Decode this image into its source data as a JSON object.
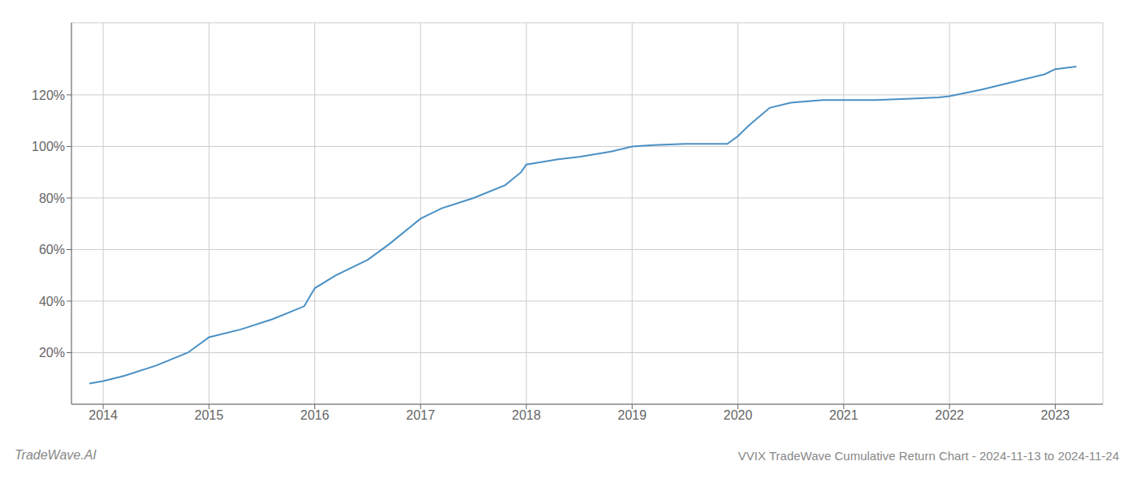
{
  "chart_data": {
    "type": "line",
    "title": "VVIX TradeWave Cumulative Return Chart - 2024-11-13 to 2024-11-24",
    "annotations": [
      "TradeWave.AI"
    ],
    "x": [
      2013.87,
      2014.0,
      2014.2,
      2014.5,
      2014.8,
      2015.0,
      2015.3,
      2015.6,
      2015.9,
      2016.0,
      2016.2,
      2016.5,
      2016.7,
      2017.0,
      2017.2,
      2017.5,
      2017.8,
      2017.95,
      2018.0,
      2018.15,
      2018.3,
      2018.5,
      2018.8,
      2019.0,
      2019.2,
      2019.5,
      2019.7,
      2019.9,
      2020.0,
      2020.1,
      2020.3,
      2020.5,
      2020.8,
      2021.0,
      2021.3,
      2021.6,
      2021.9,
      2022.0,
      2022.3,
      2022.6,
      2022.9,
      2023.0,
      2023.2
    ],
    "values": [
      8,
      9,
      11,
      15,
      20,
      26,
      29,
      33,
      38,
      45,
      50,
      56,
      62,
      72,
      76,
      80,
      85,
      90,
      93,
      94,
      95,
      96,
      98,
      100,
      100.5,
      101,
      101,
      101,
      104,
      108,
      115,
      117,
      118,
      118,
      118,
      118.5,
      119,
      119.5,
      122,
      125,
      128,
      130,
      131
    ],
    "color": "#4a90c4",
    "xlim": [
      2013.7,
      2023.45
    ],
    "ylim": [
      0,
      148
    ],
    "xticks": [
      2014,
      2015,
      2016,
      2017,
      2018,
      2019,
      2020,
      2021,
      2022,
      2023
    ],
    "yticks": [
      {
        "value": 20,
        "label": "20%"
      },
      {
        "value": 40,
        "label": "40%"
      },
      {
        "value": 60,
        "label": "60%"
      },
      {
        "value": 80,
        "label": "80%"
      },
      {
        "value": 100,
        "label": "100%"
      },
      {
        "value": 120,
        "label": "120%"
      }
    ],
    "grid": true
  }
}
